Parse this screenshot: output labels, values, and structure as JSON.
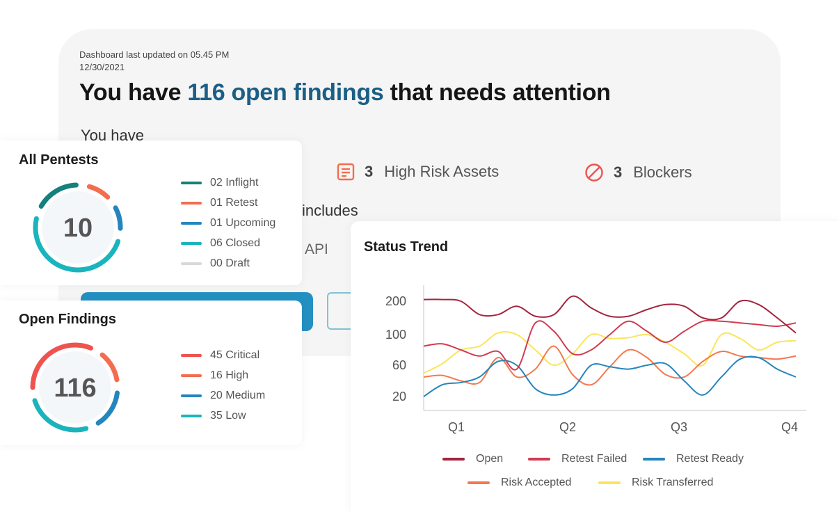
{
  "header": {
    "updated_line1": "Dashboard last updated on 05.45 PM",
    "updated_line2": "12/30/2021",
    "headline_pre": "You have",
    "headline_accent": "116 open findings",
    "headline_post": "that needs attention",
    "you_have": "You have"
  },
  "stats": [
    {
      "count": "3",
      "label": "High Risk Assets",
      "icon": "document-icon",
      "color": "#f26e4f"
    },
    {
      "count": "3",
      "label": "Blockers",
      "icon": "blocked-icon",
      "color": "#ef5350"
    }
  ],
  "includes_text": "includes",
  "api_text": "API",
  "pentests": {
    "title": "All Pentests",
    "total": "10",
    "legend": [
      {
        "label": "02 Inflight",
        "value": 2,
        "color": "#14807f"
      },
      {
        "label": "01 Retest",
        "value": 1,
        "color": "#f26e4f"
      },
      {
        "label": "01 Upcoming",
        "value": 1,
        "color": "#2585bd"
      },
      {
        "label": "06 Closed",
        "value": 6,
        "color": "#1ab4bd"
      },
      {
        "label": "00 Draft",
        "value": 0,
        "color": "#d9d9d9"
      }
    ]
  },
  "findings": {
    "title": "Open Findings",
    "total": "116",
    "legend": [
      {
        "label": "45 Critical",
        "value": 45,
        "color": "#ef5350"
      },
      {
        "label": "16 High",
        "value": 16,
        "color": "#f26e4f"
      },
      {
        "label": "20 Medium",
        "value": 20,
        "color": "#2585bd"
      },
      {
        "label": "35 Low",
        "value": 35,
        "color": "#1ab4bd"
      }
    ]
  },
  "chart_data": {
    "type": "line",
    "title": "Status Trend",
    "categories": [
      "Q1",
      "Q2",
      "Q3",
      "Q4"
    ],
    "y_ticks": [
      20,
      60,
      100,
      200
    ],
    "x": [
      0,
      0.5,
      1,
      1.5,
      2,
      2.5,
      3,
      3.5,
      4,
      4.5,
      5,
      5.5,
      6,
      6.5,
      7,
      7.5,
      8,
      8.5,
      9,
      9.5,
      10
    ],
    "series": [
      {
        "name": "Open",
        "color": "#a3243d",
        "values": [
          205,
          205,
          200,
          160,
          160,
          185,
          155,
          160,
          215,
          180,
          155,
          155,
          175,
          190,
          185,
          150,
          150,
          200,
          190,
          150,
          105
        ]
      },
      {
        "name": "Retest Failed",
        "color": "#d13c50",
        "values": [
          85,
          88,
          80,
          72,
          78,
          55,
          135,
          110,
          75,
          80,
          100,
          140,
          110,
          90,
          110,
          140,
          140,
          135,
          130,
          125,
          135
        ]
      },
      {
        "name": "Retest Ready",
        "color": "#2585bd",
        "values": [
          20,
          35,
          38,
          45,
          65,
          60,
          30,
          22,
          30,
          60,
          58,
          55,
          60,
          62,
          40,
          22,
          45,
          68,
          70,
          55,
          45
        ]
      },
      {
        "name": "Risk Accepted",
        "color": "#f2794f",
        "values": [
          45,
          47,
          40,
          38,
          70,
          45,
          55,
          85,
          48,
          35,
          58,
          80,
          70,
          48,
          45,
          65,
          78,
          72,
          70,
          68,
          72
        ]
      },
      {
        "name": "Risk Transferred",
        "color": "#fae55a",
        "values": [
          50,
          62,
          80,
          85,
          105,
          100,
          80,
          60,
          75,
          100,
          95,
          96,
          100,
          90,
          75,
          60,
          100,
          95,
          80,
          90,
          92
        ]
      }
    ]
  }
}
